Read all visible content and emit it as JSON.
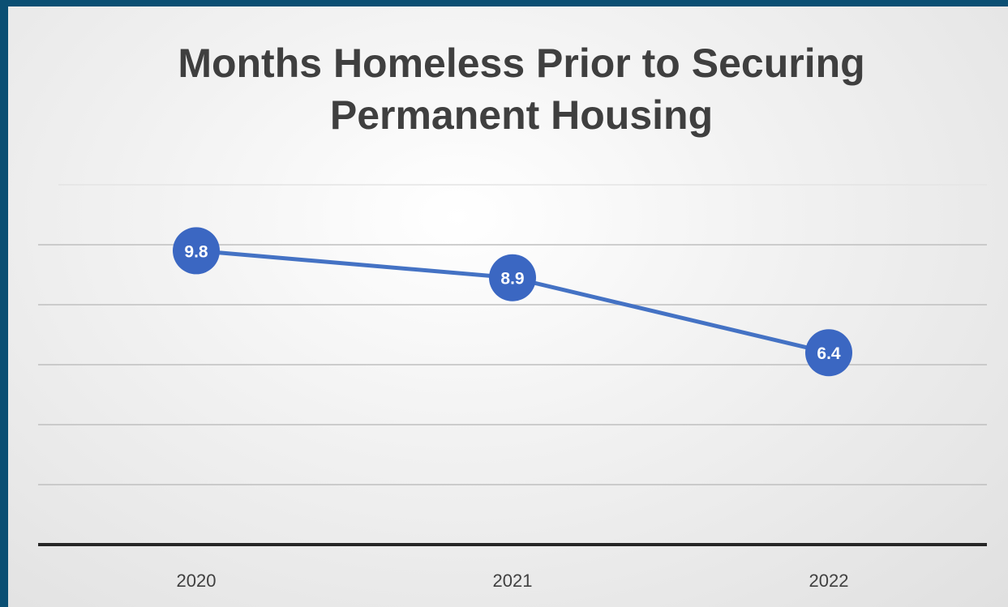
{
  "chart_data": {
    "type": "line",
    "title_lines": [
      "Months Homeless Prior to Securing",
      "Permanent Housing"
    ],
    "categories": [
      "2020",
      "2021",
      "2022"
    ],
    "values": [
      9.8,
      8.9,
      6.4
    ],
    "value_labels": [
      "9.8",
      "8.9",
      "6.4"
    ],
    "ylim": [
      0,
      12
    ],
    "grid": true,
    "legend": "none",
    "colors": {
      "line": "#4472c4",
      "marker": "#3b67c2",
      "grid": "#bfbfbf",
      "axis": "#262626",
      "frame": "#0b4f73"
    }
  }
}
